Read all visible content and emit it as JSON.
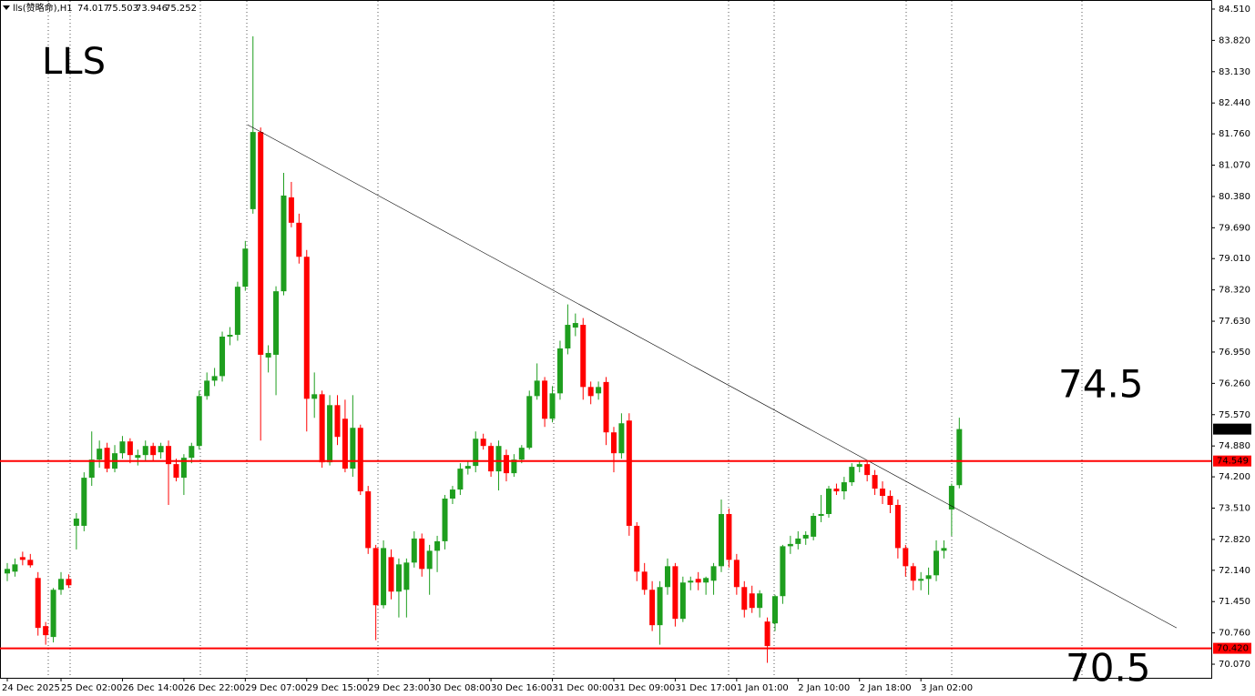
{
  "chart_data": {
    "type": "candlestick",
    "symbol": "lls(赞略命),H1",
    "annotations": [
      "LLS",
      "74.5",
      "70.5"
    ],
    "up_color": "#1e9e1e",
    "down_color": "#ff0000",
    "categories": [
      "24 Dec 2025",
      null,
      null,
      null,
      null,
      null,
      null,
      "25 Dec 02:00",
      null,
      null,
      null,
      null,
      null,
      null,
      null,
      "26 Dec 14:00",
      null,
      null,
      null,
      null,
      null,
      null,
      null,
      "26 Dec 22:00",
      null,
      null,
      null,
      null,
      null,
      null,
      null,
      "29 Dec 07:00",
      null,
      null,
      null,
      null,
      null,
      null,
      null,
      "29 Dec 15:00",
      null,
      null,
      null,
      null,
      null,
      null,
      null,
      "29 Dec 23:00",
      null,
      null,
      null,
      null,
      null,
      null,
      null,
      "30 Dec 08:00",
      null,
      null,
      null,
      null,
      null,
      null,
      null,
      "30 Dec 16:00",
      null,
      null,
      null,
      null,
      null,
      null,
      null,
      "31 Dec 00:00",
      null,
      null,
      null,
      null,
      null,
      null,
      null,
      "31 Dec 09:00",
      null,
      null,
      null,
      null,
      null,
      null,
      null,
      "31 Dec 17:00",
      null,
      null,
      null,
      null,
      null,
      null,
      null,
      "1 Jan 01:00",
      null,
      null,
      null,
      null,
      null,
      null,
      null,
      "2 Jan 10:00",
      null,
      null,
      null,
      null,
      null,
      null,
      null,
      "2 Jan 18:00",
      null,
      null,
      null,
      null,
      null,
      null,
      null,
      "3 Jan 02:00",
      null,
      null,
      null,
      null,
      null
    ],
    "ohlc": [
      [
        72.07,
        72.3,
        71.9,
        72.17
      ],
      [
        72.11,
        72.4,
        72.0,
        72.27
      ],
      [
        72.43,
        72.55,
        72.25,
        72.37
      ],
      [
        72.37,
        72.5,
        72.2,
        72.25
      ],
      [
        71.97,
        72.1,
        70.7,
        70.87
      ],
      [
        70.91,
        71.0,
        70.5,
        70.71
      ],
      [
        70.67,
        71.75,
        70.55,
        71.71
      ],
      [
        71.71,
        72.1,
        71.6,
        71.95
      ],
      [
        71.95,
        72.05,
        71.75,
        71.81
      ],
      [
        73.12,
        73.4,
        72.6,
        73.28
      ],
      [
        73.12,
        74.3,
        73.0,
        74.18
      ],
      [
        74.18,
        75.2,
        74.0,
        74.58
      ],
      [
        74.58,
        75.0,
        74.4,
        74.82
      ],
      [
        74.84,
        74.95,
        74.3,
        74.38
      ],
      [
        74.38,
        74.9,
        74.3,
        74.72
      ],
      [
        74.72,
        75.1,
        74.6,
        74.98
      ],
      [
        74.98,
        75.05,
        74.5,
        74.68
      ],
      [
        74.62,
        74.8,
        74.45,
        74.68
      ],
      [
        74.68,
        75.0,
        74.55,
        74.88
      ],
      [
        74.88,
        74.95,
        74.55,
        74.68
      ],
      [
        74.74,
        74.95,
        74.6,
        74.88
      ],
      [
        74.88,
        75.0,
        73.58,
        74.48
      ],
      [
        74.48,
        74.6,
        74.1,
        74.18
      ],
      [
        74.18,
        74.7,
        73.8,
        74.62
      ],
      [
        74.62,
        74.95,
        74.5,
        74.88
      ],
      [
        74.88,
        76.1,
        74.8,
        75.98
      ],
      [
        75.98,
        76.5,
        75.9,
        76.32
      ],
      [
        76.32,
        76.6,
        76.2,
        76.42
      ],
      [
        76.42,
        77.4,
        76.3,
        77.29
      ],
      [
        77.29,
        77.5,
        77.1,
        77.33
      ],
      [
        77.33,
        78.5,
        77.2,
        78.39
      ],
      [
        78.39,
        79.4,
        78.3,
        79.23
      ],
      [
        80.1,
        83.91,
        80.0,
        81.8
      ],
      [
        81.8,
        81.9,
        75.0,
        76.89
      ],
      [
        76.83,
        77.1,
        76.5,
        76.93
      ],
      [
        76.89,
        78.4,
        76.0,
        78.29
      ],
      [
        78.29,
        80.9,
        78.2,
        80.4
      ],
      [
        80.36,
        80.7,
        79.7,
        79.8
      ],
      [
        79.8,
        80.0,
        78.9,
        79.05
      ],
      [
        79.05,
        79.2,
        75.2,
        75.92
      ],
      [
        75.92,
        76.5,
        75.5,
        76.02
      ],
      [
        76.02,
        76.1,
        74.4,
        74.52
      ],
      [
        74.52,
        76.0,
        74.45,
        75.78
      ],
      [
        75.78,
        76.0,
        74.9,
        75.08
      ],
      [
        75.48,
        75.9,
        74.3,
        74.38
      ],
      [
        74.38,
        76.0,
        74.2,
        75.28
      ],
      [
        75.28,
        75.35,
        73.8,
        73.88
      ],
      [
        73.88,
        74.0,
        72.5,
        72.63
      ],
      [
        72.63,
        72.7,
        70.6,
        71.37
      ],
      [
        71.37,
        72.8,
        71.3,
        72.63
      ],
      [
        72.43,
        72.6,
        71.5,
        71.67
      ],
      [
        71.67,
        72.4,
        71.1,
        72.27
      ],
      [
        71.71,
        72.4,
        71.1,
        72.31
      ],
      [
        72.31,
        73.0,
        72.2,
        72.84
      ],
      [
        72.84,
        72.95,
        72.0,
        72.17
      ],
      [
        72.17,
        72.7,
        71.6,
        72.57
      ],
      [
        72.57,
        72.9,
        72.1,
        72.78
      ],
      [
        72.78,
        73.8,
        72.6,
        73.72
      ],
      [
        73.72,
        74.0,
        73.6,
        73.92
      ],
      [
        73.92,
        74.5,
        73.8,
        74.38
      ],
      [
        74.38,
        74.55,
        74.25,
        74.44
      ],
      [
        74.44,
        75.2,
        74.3,
        75.04
      ],
      [
        75.04,
        75.15,
        74.8,
        74.88
      ],
      [
        74.88,
        74.95,
        74.2,
        74.32
      ],
      [
        74.32,
        75.0,
        73.9,
        74.88
      ],
      [
        74.68,
        74.8,
        74.1,
        74.28
      ],
      [
        74.28,
        74.7,
        74.2,
        74.58
      ],
      [
        74.58,
        74.9,
        74.5,
        74.84
      ],
      [
        74.84,
        76.1,
        74.8,
        75.98
      ],
      [
        75.98,
        76.7,
        75.9,
        76.32
      ],
      [
        76.32,
        76.4,
        75.3,
        75.48
      ],
      [
        75.48,
        76.2,
        75.4,
        76.04
      ],
      [
        76.04,
        77.2,
        75.9,
        77.03
      ],
      [
        77.03,
        78.0,
        76.9,
        77.55
      ],
      [
        77.49,
        77.8,
        77.3,
        77.59
      ],
      [
        77.55,
        77.7,
        75.9,
        76.18
      ],
      [
        76.18,
        76.3,
        75.8,
        75.98
      ],
      [
        76.04,
        76.3,
        75.9,
        76.18
      ],
      [
        76.29,
        76.4,
        74.9,
        75.18
      ],
      [
        75.18,
        75.3,
        74.3,
        74.72
      ],
      [
        74.72,
        75.6,
        74.6,
        75.38
      ],
      [
        75.44,
        75.6,
        72.9,
        73.12
      ],
      [
        73.12,
        73.2,
        71.9,
        72.11
      ],
      [
        72.11,
        72.3,
        71.6,
        71.71
      ],
      [
        71.71,
        71.9,
        70.8,
        70.93
      ],
      [
        70.93,
        71.9,
        70.5,
        71.77
      ],
      [
        71.77,
        72.4,
        71.6,
        72.23
      ],
      [
        72.23,
        72.3,
        70.9,
        71.07
      ],
      [
        71.07,
        72.0,
        71.0,
        71.87
      ],
      [
        71.87,
        72.0,
        71.7,
        71.91
      ],
      [
        71.95,
        72.1,
        71.7,
        71.87
      ],
      [
        71.87,
        72.0,
        71.6,
        71.97
      ],
      [
        71.91,
        72.3,
        71.6,
        72.23
      ],
      [
        72.23,
        73.7,
        72.1,
        73.38
      ],
      [
        73.38,
        73.5,
        72.2,
        72.37
      ],
      [
        72.37,
        72.5,
        71.6,
        71.77
      ],
      [
        71.77,
        71.9,
        71.1,
        71.27
      ],
      [
        71.63,
        71.8,
        71.2,
        71.31
      ],
      [
        71.31,
        71.7,
        71.1,
        71.63
      ],
      [
        71.01,
        71.1,
        70.1,
        70.47
      ],
      [
        70.97,
        71.6,
        70.8,
        71.57
      ],
      [
        71.57,
        72.7,
        71.4,
        72.67
      ],
      [
        72.67,
        72.9,
        72.5,
        72.72
      ],
      [
        72.72,
        73.0,
        72.6,
        72.84
      ],
      [
        72.84,
        73.0,
        72.7,
        72.92
      ],
      [
        72.88,
        73.4,
        72.8,
        73.34
      ],
      [
        73.34,
        73.8,
        73.2,
        73.38
      ],
      [
        73.38,
        74.0,
        73.3,
        73.94
      ],
      [
        73.94,
        74.05,
        73.8,
        73.88
      ],
      [
        73.88,
        74.2,
        73.7,
        74.08
      ],
      [
        74.08,
        74.5,
        74.0,
        74.42
      ],
      [
        74.42,
        74.55,
        74.3,
        74.48
      ],
      [
        74.48,
        74.55,
        74.1,
        74.24
      ],
      [
        74.24,
        74.35,
        73.8,
        73.94
      ],
      [
        73.94,
        74.1,
        73.6,
        73.78
      ],
      [
        73.78,
        73.9,
        73.4,
        73.58
      ],
      [
        73.58,
        73.7,
        72.4,
        72.63
      ],
      [
        72.63,
        72.7,
        72.0,
        72.23
      ],
      [
        72.23,
        72.3,
        71.7,
        71.91
      ],
      [
        71.91,
        72.1,
        71.7,
        71.95
      ],
      [
        71.95,
        72.2,
        71.6,
        72.03
      ],
      [
        72.03,
        72.8,
        71.9,
        72.57
      ],
      [
        72.57,
        72.8,
        72.4,
        72.63
      ],
      [
        73.48,
        74.05,
        72.9,
        74.0
      ],
      [
        74.017,
        75.503,
        73.946,
        75.252
      ]
    ],
    "ylim": [
      69.77,
      84.71
    ],
    "yticks": [
      {
        "value": 84.51,
        "label": "84.510"
      },
      {
        "value": 83.82,
        "label": "83.820"
      },
      {
        "value": 83.13,
        "label": "83.130"
      },
      {
        "value": 82.44,
        "label": "82.440"
      },
      {
        "value": 81.76,
        "label": "81.760"
      },
      {
        "value": 81.07,
        "label": "81.070"
      },
      {
        "value": 80.38,
        "label": "80.380"
      },
      {
        "value": 79.69,
        "label": "79.690"
      },
      {
        "value": 79.01,
        "label": "79.010"
      },
      {
        "value": 78.32,
        "label": "78.320"
      },
      {
        "value": 77.63,
        "label": "77.630"
      },
      {
        "value": 76.95,
        "label": "76.950"
      },
      {
        "value": 76.26,
        "label": "76.260"
      },
      {
        "value": 75.57,
        "label": "75.570"
      },
      {
        "value": 74.88,
        "label": "74.880"
      },
      {
        "value": 74.2,
        "label": "74.200"
      },
      {
        "value": 73.51,
        "label": "73.510"
      },
      {
        "value": 72.82,
        "label": "72.820"
      },
      {
        "value": 72.14,
        "label": "72.140"
      },
      {
        "value": 71.45,
        "label": "71.450"
      },
      {
        "value": 70.76,
        "label": "70.760"
      },
      {
        "value": 70.07,
        "label": "70.070"
      }
    ],
    "levels": [
      {
        "value": 74.549,
        "label": "74.549",
        "color": "#ff0000"
      },
      {
        "value": 70.42,
        "label": "70.420",
        "color": "#ff0000"
      }
    ],
    "current_price": {
      "value": 75.252,
      "label": "75.252",
      "color": "#000000"
    },
    "trendline": {
      "start": [
        31.3,
        81.96
      ],
      "end": [
        152.3,
        70.87
      ],
      "color": "#000000"
    }
  }
}
